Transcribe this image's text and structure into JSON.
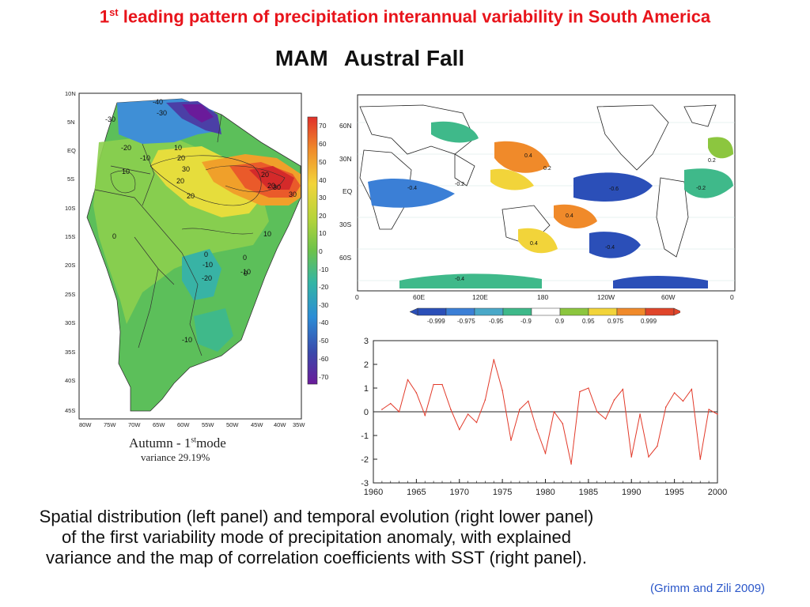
{
  "header": {
    "title_prefix": "1",
    "title_sup": "st",
    "title_rest": " leading pattern of precipitation interannual variability in South America",
    "subtitle_a": "MAM",
    "subtitle_b": "Austral Fall"
  },
  "left_map": {
    "lat_labels": [
      "10N",
      "5N",
      "EQ",
      "5S",
      "10S",
      "15S",
      "20S",
      "25S",
      "30S",
      "35S",
      "40S",
      "45S"
    ],
    "lon_labels": [
      "80W",
      "75W",
      "70W",
      "65W",
      "60W",
      "55W",
      "50W",
      "45W",
      "40W",
      "35W"
    ],
    "contour_labels": [
      "-40",
      "-30",
      "-30",
      "-20",
      "-10",
      "10",
      "20",
      "10",
      "30",
      "20",
      "20",
      "20",
      "30",
      "30",
      "10",
      "0",
      "0",
      "0",
      "-10",
      "-20",
      "-10",
      "0",
      "-10",
      "20"
    ],
    "colorbar_labels": [
      "70",
      "60",
      "50",
      "40",
      "30",
      "20",
      "10",
      "0",
      "-10",
      "-20",
      "-30",
      "-40",
      "-50",
      "-60",
      "-70"
    ],
    "caption_main": "Autumn - 1",
    "caption_sup": "st",
    "caption_tail": "mode",
    "caption_variance": "variance 29.19%"
  },
  "sst_map": {
    "lat_labels": [
      "60N",
      "30N",
      "EQ",
      "30S",
      "60S"
    ],
    "lon_labels": [
      "0",
      "60E",
      "120E",
      "180",
      "120W",
      "60W",
      "0"
    ],
    "contour_labels": [
      "0.4",
      "0.2",
      "-0.4",
      "-0.6",
      "-0.2",
      "0.4",
      "-0.4",
      "0.2",
      "-0.2",
      "0.4",
      "-0.4"
    ],
    "colorbar_labels": [
      "-0.999",
      "-0.975",
      "-0.95",
      "-0.9",
      "0.9",
      "0.95",
      "0.975",
      "0.999"
    ],
    "colorbar_colors": [
      "#2b4fb8",
      "#3b7fd6",
      "#4aa8c8",
      "#3fb98a",
      "#ffffff",
      "#8cc63f",
      "#f2d43a",
      "#f08a2a",
      "#e0452a"
    ]
  },
  "chart_data": {
    "type": "line",
    "title": "",
    "xlabel": "",
    "ylabel": "",
    "xlim": [
      1960,
      2000
    ],
    "ylim": [
      -3,
      3
    ],
    "x_ticks": [
      "1960",
      "1965",
      "1970",
      "1975",
      "1980",
      "1985",
      "1990",
      "1995",
      "2000"
    ],
    "y_ticks": [
      "3",
      "2",
      "1",
      "0",
      "-1",
      "-2",
      "-3"
    ],
    "series": [
      {
        "color": "#e23a2a",
        "x": [
          1961,
          1962,
          1963,
          1964,
          1965,
          1966,
          1967,
          1968,
          1969,
          1970,
          1971,
          1972,
          1973,
          1974,
          1975,
          1976,
          1977,
          1978,
          1979,
          1980,
          1981,
          1982,
          1983,
          1984,
          1985,
          1986,
          1987,
          1988,
          1989,
          1990,
          1991,
          1992,
          1993,
          1994,
          1995,
          1996,
          1997,
          1998,
          1999,
          2000
        ],
        "values": [
          0.1,
          0.35,
          0.0,
          1.35,
          0.8,
          -0.15,
          1.15,
          1.15,
          0.1,
          -0.75,
          -0.1,
          -0.45,
          0.5,
          2.2,
          0.9,
          -1.2,
          0.1,
          0.45,
          -0.75,
          -1.75,
          0.0,
          -0.5,
          -2.2,
          0.85,
          1.0,
          0.0,
          -0.3,
          0.5,
          0.95,
          -1.9,
          -0.1,
          -1.9,
          -1.45,
          0.2,
          0.8,
          0.45,
          0.95,
          -2.0,
          0.1,
          -0.1
        ]
      }
    ]
  },
  "caption": {
    "text": "Spatial distribution (left panel) and temporal evolution (right lower panel) of the first variability mode of precipitation anomaly, with explained variance and the map of correlation coefficients with SST (right panel)."
  },
  "citation": "(Grimm and Zili 2009)"
}
